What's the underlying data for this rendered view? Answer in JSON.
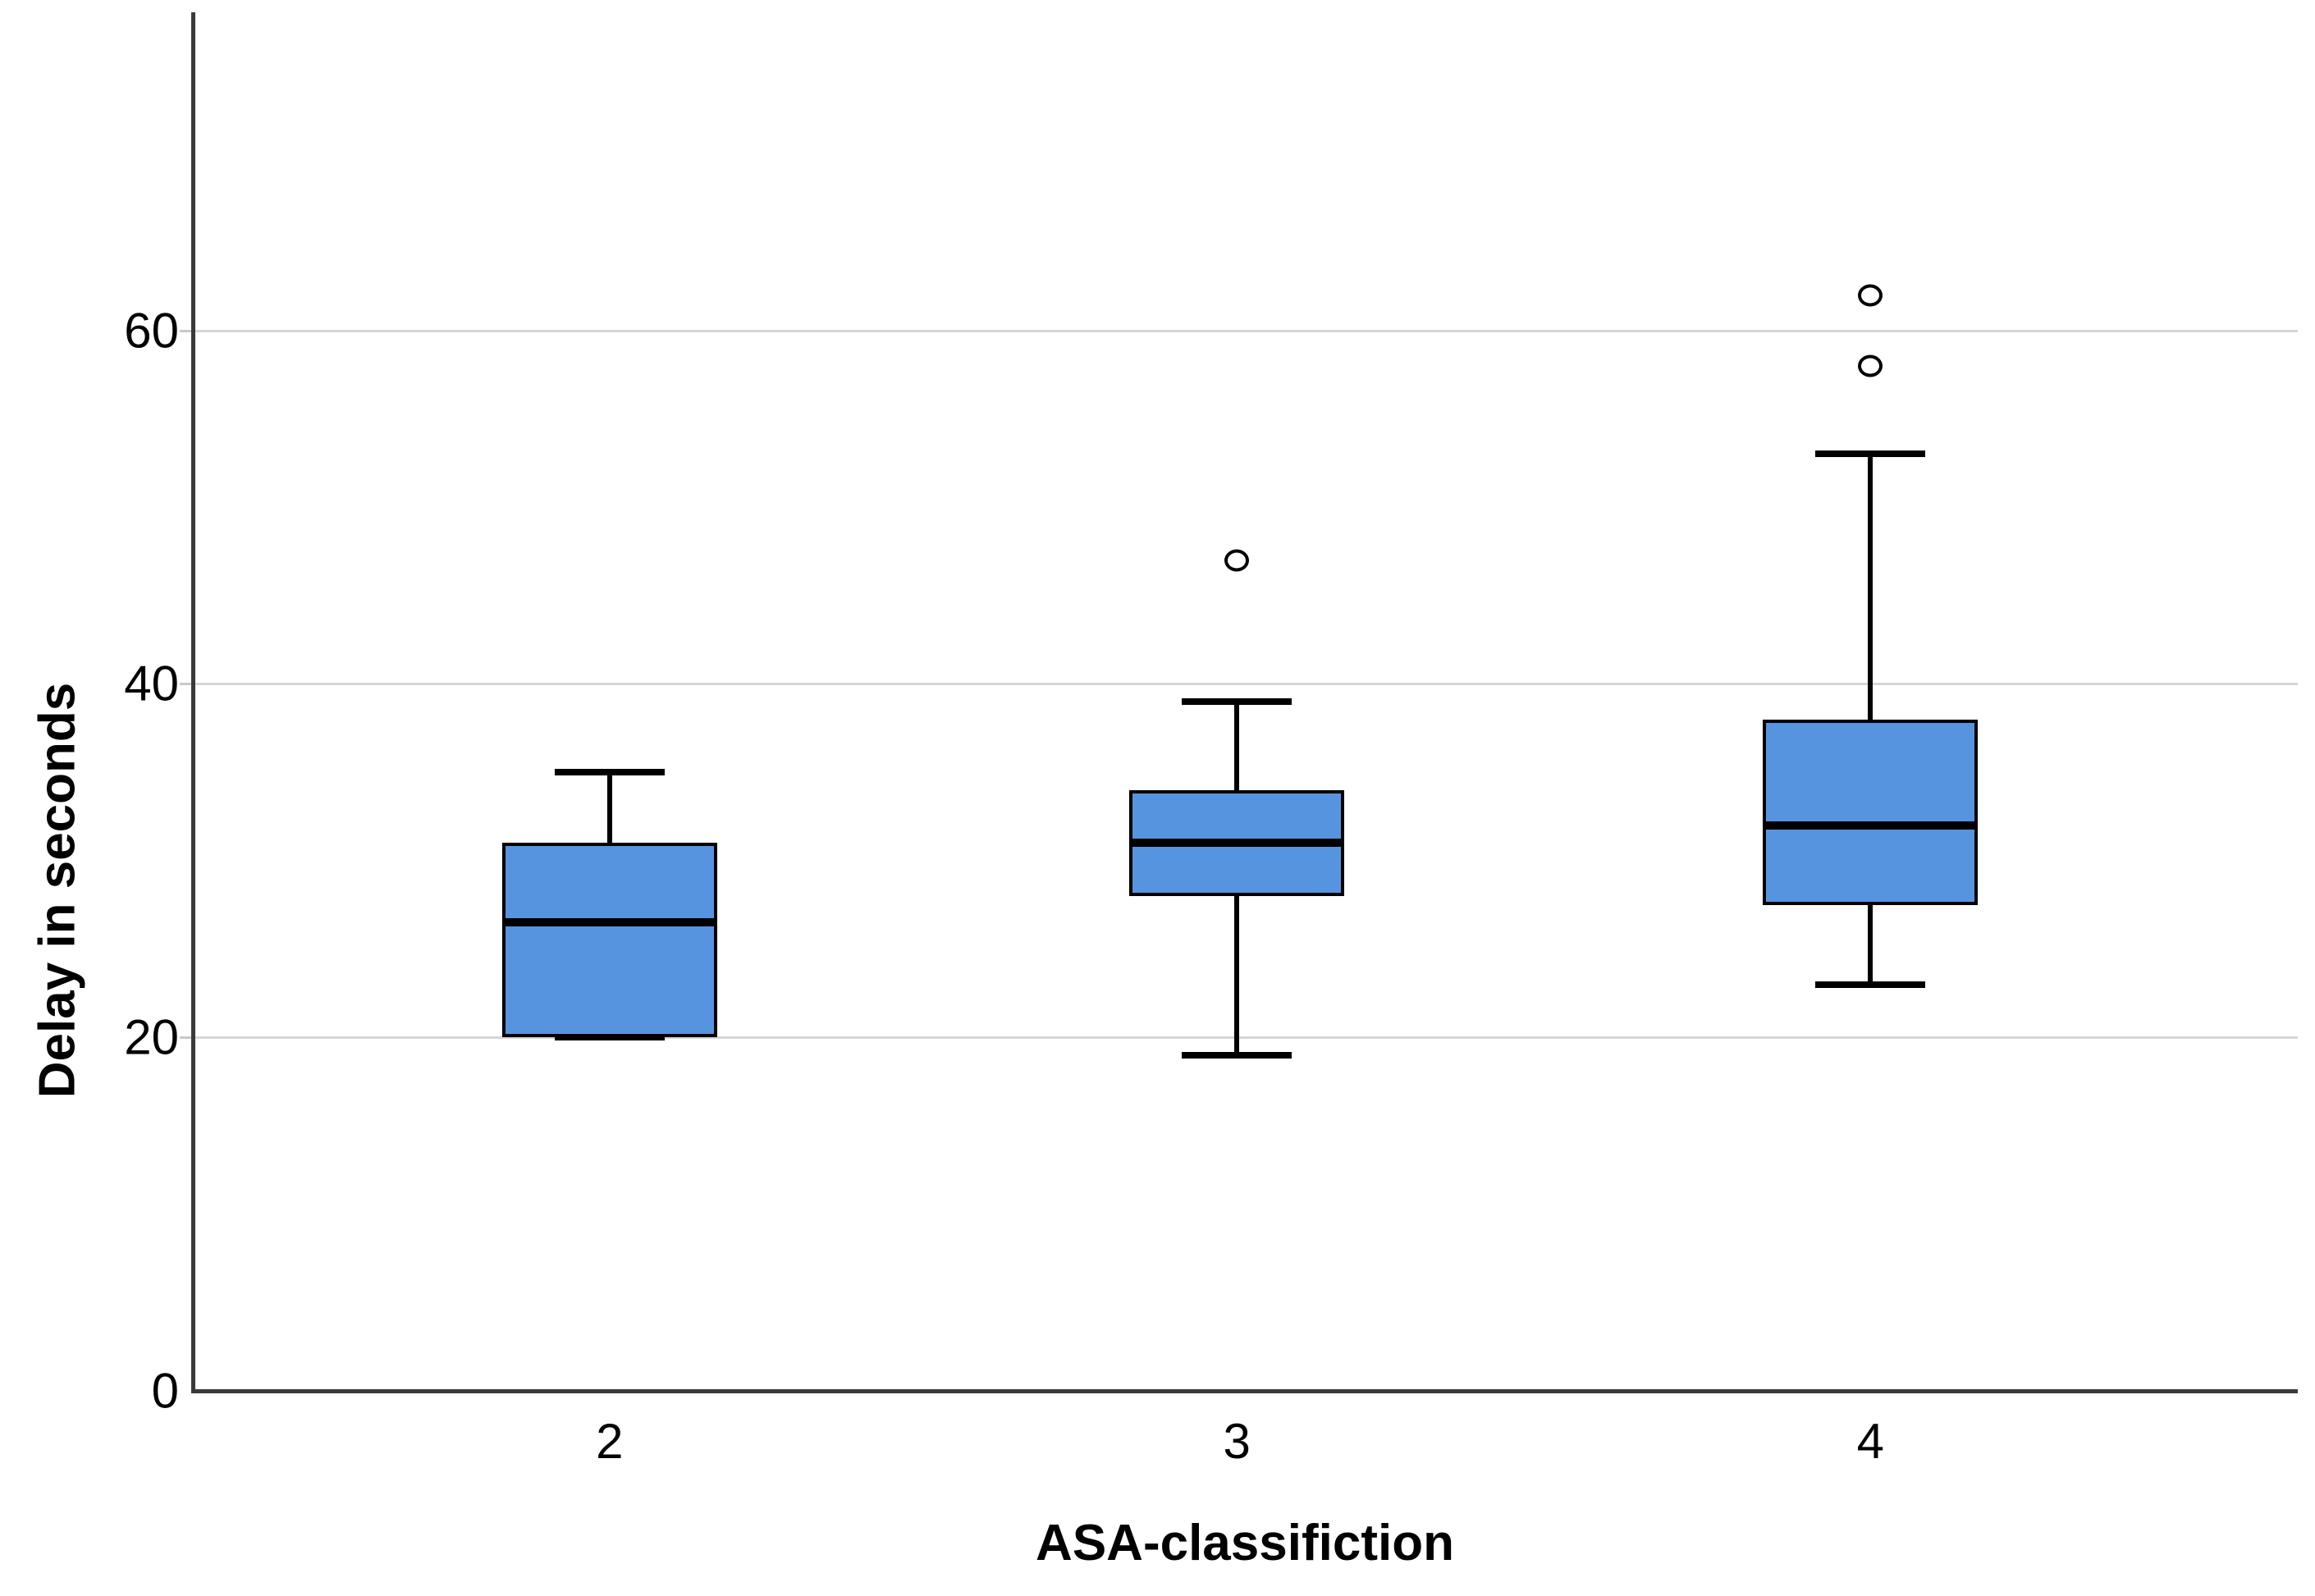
{
  "chart_data": {
    "type": "boxplot",
    "title": "",
    "xlabel": "ASA-classifiction",
    "ylabel": "Delay in seconds",
    "categories": [
      "2",
      "3",
      "4"
    ],
    "y_ticks": [
      0,
      20,
      40,
      60
    ],
    "ylim": [
      0,
      78
    ],
    "grid": "horizontal-gridlines-at-20-40-60",
    "legend": "none",
    "series": [
      {
        "category": "2",
        "min": 20,
        "q1": 20,
        "median": 26.5,
        "q3": 31,
        "max": 35,
        "outliers": []
      },
      {
        "category": "3",
        "min": 19,
        "q1": 28,
        "median": 31,
        "q3": 34,
        "max": 39,
        "outliers": [
          47
        ]
      },
      {
        "category": "4",
        "min": 23,
        "q1": 27.5,
        "median": 32,
        "q3": 38,
        "max": 53,
        "outliers": [
          58,
          62
        ]
      }
    ],
    "colors": {
      "box_fill": "#5794E0",
      "box_border": "#000000",
      "median": "#000000",
      "whisker": "#000000",
      "outlier_stroke": "#000000",
      "outlier_fill": "#ffffff",
      "gridline": "#d6d6d6",
      "axis": "#3a3a3a",
      "text": "#000000",
      "background": "#ffffff"
    }
  }
}
